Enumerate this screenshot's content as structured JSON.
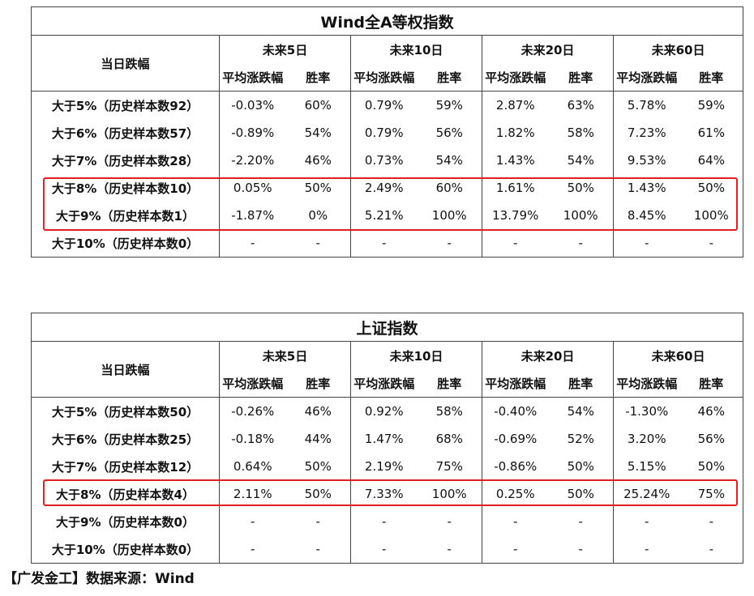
{
  "tables": [
    {
      "title": "Wind全A等权指数",
      "row_header": "当日跌幅",
      "periods": [
        "未来5日",
        "未来10日",
        "未来20日",
        "未来60日"
      ],
      "sub_headers": [
        "平均涨跌幅",
        "胜率"
      ],
      "rows": [
        {
          "label": "大于5%（历史样本数92）",
          "cells": [
            "-0.03%",
            "60%",
            "0.79%",
            "59%",
            "2.87%",
            "63%",
            "5.78%",
            "59%"
          ]
        },
        {
          "label": "大于6%（历史样本数57）",
          "cells": [
            "-0.89%",
            "54%",
            "0.79%",
            "56%",
            "1.82%",
            "58%",
            "7.23%",
            "61%"
          ]
        },
        {
          "label": "大于7%（历史样本数28）",
          "cells": [
            "-2.20%",
            "46%",
            "0.73%",
            "54%",
            "1.43%",
            "54%",
            "9.53%",
            "64%"
          ]
        },
        {
          "label": "大于8%（历史样本数10）",
          "cells": [
            "0.05%",
            "50%",
            "2.49%",
            "60%",
            "1.61%",
            "50%",
            "1.43%",
            "50%"
          ]
        },
        {
          "label": "大于9%（历史样本数1）",
          "cells": [
            "-1.87%",
            "0%",
            "5.21%",
            "100%",
            "13.79%",
            "100%",
            "8.45%",
            "100%"
          ]
        },
        {
          "label": "大于10%（历史样本数0）",
          "cells": [
            "-",
            "-",
            "-",
            "-",
            "-",
            "-",
            "-",
            "-"
          ]
        }
      ],
      "highlighted_rows": [
        "大于8%（历史样本数10）",
        "大于9%（历史样本数1）"
      ]
    },
    {
      "title": "上证指数",
      "row_header": "当日跌幅",
      "periods": [
        "未来5日",
        "未来10日",
        "未来20日",
        "未来60日"
      ],
      "sub_headers": [
        "平均涨跌幅",
        "胜率"
      ],
      "rows": [
        {
          "label": "大于5%（历史样本数50）",
          "cells": [
            "-0.26%",
            "46%",
            "0.92%",
            "58%",
            "-0.40%",
            "54%",
            "-1.30%",
            "46%"
          ]
        },
        {
          "label": "大于6%（历史样本数25）",
          "cells": [
            "-0.18%",
            "44%",
            "1.47%",
            "68%",
            "-0.69%",
            "52%",
            "3.20%",
            "56%"
          ]
        },
        {
          "label": "大于7%（历史样本数12）",
          "cells": [
            "0.64%",
            "50%",
            "2.19%",
            "75%",
            "-0.86%",
            "50%",
            "5.15%",
            "50%"
          ]
        },
        {
          "label": "大于8%（历史样本数4）",
          "cells": [
            "2.11%",
            "50%",
            "7.33%",
            "100%",
            "0.25%",
            "50%",
            "25.24%",
            "75%"
          ]
        },
        {
          "label": "大于9%（历史样本数0）",
          "cells": [
            "-",
            "-",
            "-",
            "-",
            "-",
            "-",
            "-",
            "-"
          ]
        },
        {
          "label": "大于10%（历史样本数0）",
          "cells": [
            "-",
            "-",
            "-",
            "-",
            "-",
            "-",
            "-",
            "-"
          ]
        }
      ],
      "highlighted_rows": [
        "大于8%（历史样本数4）"
      ]
    }
  ],
  "footer": "【广发金工】数据来源：Wind",
  "colors": {
    "highlight_border": "#e02020",
    "grid": "#444444"
  }
}
